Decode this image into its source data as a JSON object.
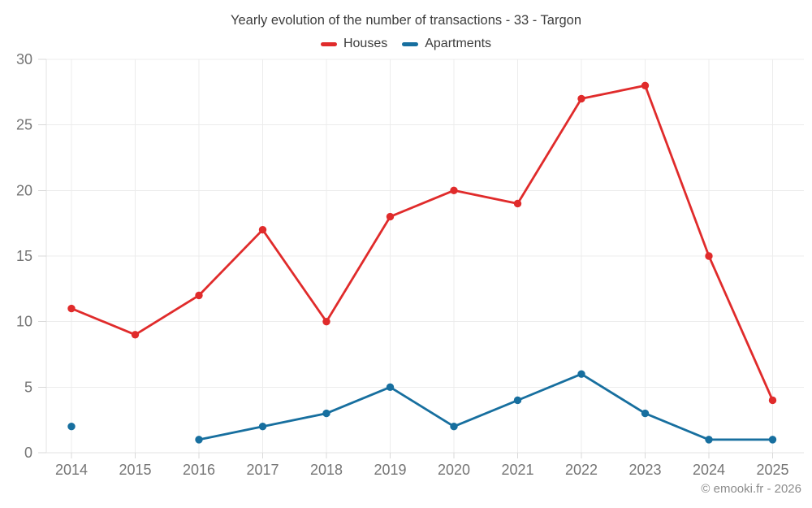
{
  "chart_data": {
    "type": "line",
    "title": "Yearly evolution of the number of transactions - 33 - Targon",
    "categories": [
      "2014",
      "2015",
      "2016",
      "2017",
      "2018",
      "2019",
      "2020",
      "2021",
      "2022",
      "2023",
      "2024",
      "2025"
    ],
    "series": [
      {
        "name": "Houses",
        "color": "#e02b2b",
        "values": [
          11,
          9,
          12,
          17,
          10,
          18,
          20,
          19,
          27,
          28,
          15,
          4
        ]
      },
      {
        "name": "Apartments",
        "color": "#176f9f",
        "values": [
          2,
          null,
          1,
          2,
          3,
          5,
          2,
          4,
          6,
          3,
          1,
          1
        ]
      }
    ],
    "xlabel": "",
    "ylabel": "",
    "ylim": [
      0,
      30
    ],
    "ytick_step": 5,
    "yticks": [
      0,
      5,
      10,
      15,
      20,
      25,
      30
    ],
    "grid": true,
    "legend_position": "top"
  },
  "footer": {
    "credit": "© emooki.fr - 2026"
  }
}
